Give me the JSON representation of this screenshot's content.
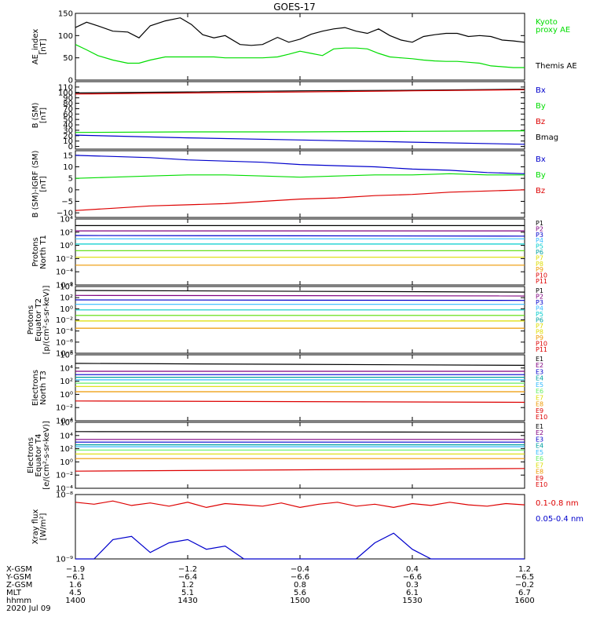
{
  "title": "GOES-17",
  "colors": {
    "black": "#000000",
    "green": "#00dd00",
    "blue": "#0000cc",
    "red": "#dd0000",
    "cyan": "#00cccc",
    "yellow": "#dddd00",
    "orange": "#ee9900",
    "purple": "#800080",
    "magenta": "#cc00cc",
    "teal": "#00a0a0",
    "lime": "#55dd00",
    "ltgreen": "#66ee66",
    "ltblue": "#33bbff"
  },
  "chart_data": [
    {
      "id": "ae",
      "type": "line",
      "ylabel": [
        "AE_index",
        "[nT]"
      ],
      "ylim": [
        0,
        150
      ],
      "yticks": [
        0,
        50,
        100,
        150
      ],
      "ytick_labels": [
        "0",
        "50",
        "100",
        "150"
      ],
      "x": [
        1400,
        1403,
        1406,
        1410,
        1414,
        1417,
        1420,
        1424,
        1428,
        1431,
        1434,
        1437,
        1440,
        1444,
        1447,
        1450,
        1454,
        1457,
        1500,
        1503,
        1506,
        1509,
        1512,
        1515,
        1518,
        1521,
        1524,
        1527,
        1530,
        1533,
        1536,
        1539,
        1542,
        1545,
        1548,
        1551,
        1554,
        1557,
        1600
      ],
      "series": [
        {
          "name": "Themis AE",
          "color": "#000000",
          "values": [
            118,
            130,
            122,
            110,
            108,
            95,
            122,
            133,
            140,
            125,
            102,
            95,
            100,
            80,
            78,
            80,
            96,
            85,
            92,
            103,
            110,
            115,
            118,
            110,
            105,
            115,
            100,
            90,
            85,
            98,
            102,
            105,
            105,
            98,
            100,
            98,
            90,
            88,
            85
          ]
        },
        {
          "name": "Kyoto proxy AE",
          "color": "#00dd00",
          "values": [
            80,
            68,
            55,
            45,
            38,
            38,
            45,
            52,
            52,
            52,
            52,
            52,
            50,
            50,
            50,
            50,
            52,
            58,
            65,
            60,
            55,
            70,
            72,
            72,
            70,
            60,
            52,
            50,
            48,
            45,
            43,
            42,
            42,
            40,
            38,
            32,
            30,
            28,
            28
          ]
        }
      ],
      "legend": [
        {
          "text": "Kyoto",
          "color": "#00dd00"
        },
        {
          "text": "proxy AE",
          "color": "#00dd00"
        },
        {
          "text": "Themis AE",
          "color": "#000000"
        }
      ]
    },
    {
      "id": "bsm",
      "type": "line",
      "ylabel": [
        "B (SM)",
        "[nT]"
      ],
      "ylim": [
        -5,
        120
      ],
      "yticks": [
        0,
        10,
        20,
        30,
        40,
        50,
        60,
        70,
        80,
        90,
        100,
        110
      ],
      "ytick_labels": [
        "0",
        "10",
        "20",
        "30",
        "40",
        "50",
        "60",
        "70",
        "80",
        "90",
        "100",
        "110"
      ],
      "x": [
        1400,
        1430,
        1500,
        1530,
        1600
      ],
      "series": [
        {
          "name": "Bmag",
          "color": "#000000",
          "values": [
            99,
            101,
            103,
            104,
            106
          ]
        },
        {
          "name": "Bz",
          "color": "#dd0000",
          "values": [
            97,
            99,
            101,
            103,
            105
          ]
        },
        {
          "name": "By",
          "color": "#00dd00",
          "values": [
            26,
            27,
            27,
            28,
            29
          ]
        },
        {
          "name": "Bx",
          "color": "#0000cc",
          "values": [
            21,
            16,
            12,
            8,
            4
          ]
        }
      ],
      "legend": [
        {
          "text": "Bx",
          "color": "#0000cc"
        },
        {
          "text": "By",
          "color": "#00dd00"
        },
        {
          "text": "Bz",
          "color": "#dd0000"
        },
        {
          "text": "Bmag",
          "color": "#000000"
        }
      ]
    },
    {
      "id": "bigrf",
      "type": "line",
      "ylabel": [
        "B (SM)-IGRF (SM)",
        "[nT]"
      ],
      "ylim": [
        -12,
        17
      ],
      "yticks": [
        -10,
        -5,
        0,
        5,
        10,
        15
      ],
      "ytick_labels": [
        "−10",
        "−5",
        "0",
        "5",
        "10",
        "15"
      ],
      "x": [
        1400,
        1410,
        1420,
        1430,
        1440,
        1450,
        1500,
        1510,
        1520,
        1530,
        1540,
        1550,
        1600
      ],
      "series": [
        {
          "name": "Bx",
          "color": "#0000cc",
          "values": [
            15,
            14.5,
            14,
            13,
            12.5,
            12,
            11,
            10.5,
            10,
            9,
            8.5,
            7.5,
            7
          ]
        },
        {
          "name": "By",
          "color": "#00dd00",
          "values": [
            5,
            5.5,
            6,
            6.5,
            6.5,
            6,
            5.5,
            6,
            6.5,
            6.5,
            7,
            6.5,
            6.5
          ]
        },
        {
          "name": "Bz",
          "color": "#dd0000",
          "values": [
            -9,
            -8,
            -7,
            -6.5,
            -6,
            -5,
            -4,
            -3.5,
            -2.5,
            -2,
            -1,
            -0.5,
            0
          ]
        }
      ],
      "legend": [
        {
          "text": "Bx",
          "color": "#0000cc"
        },
        {
          "text": "By",
          "color": "#00dd00"
        },
        {
          "text": "Bz",
          "color": "#dd0000"
        }
      ]
    },
    {
      "id": "pnorth",
      "type": "line",
      "log": true,
      "ylabel": [
        "Protons",
        "North T1"
      ],
      "ylim": [
        -6,
        4
      ],
      "yticks": [
        4,
        2,
        0,
        -2,
        -4,
        -6
      ],
      "ytick_labels": [
        "10⁴",
        "10²",
        "10⁰",
        "10⁻²",
        "10⁻⁴",
        "10⁻⁶"
      ],
      "x": [
        1400,
        1600
      ],
      "series": [
        {
          "name": "P1",
          "color": "#000000",
          "values": [
            3.0,
            3.0
          ]
        },
        {
          "name": "P2",
          "color": "#800080",
          "values": [
            2.2,
            2.2
          ]
        },
        {
          "name": "P3",
          "color": "#0000cc",
          "values": [
            1.5,
            1.4
          ]
        },
        {
          "name": "P4",
          "color": "#33bbff",
          "values": [
            1.0,
            1.0
          ]
        },
        {
          "name": "P5",
          "color": "#00cccc",
          "values": [
            0.2,
            0.2
          ]
        },
        {
          "name": "P6",
          "color": "#55dd00",
          "values": [
            -0.8,
            -0.8
          ]
        },
        {
          "name": "P7",
          "color": "#dddd00",
          "values": [
            -1.8,
            -1.8
          ]
        },
        {
          "name": "P8",
          "color": "#ee9900",
          "values": [
            -3.0,
            -3.0
          ]
        }
      ],
      "legend": [
        {
          "text": "P1",
          "color": "#000000"
        },
        {
          "text": "P2",
          "color": "#800080"
        },
        {
          "text": "P3",
          "color": "#0000cc"
        },
        {
          "text": "P4",
          "color": "#33bbff"
        },
        {
          "text": "P5",
          "color": "#00cccc"
        },
        {
          "text": "P6",
          "color": "#00a0a0"
        },
        {
          "text": "P7",
          "color": "#dddd00"
        },
        {
          "text": "P8",
          "color": "#dddd00"
        },
        {
          "text": "P9",
          "color": "#ee9900"
        },
        {
          "text": "P10",
          "color": "#dd0000"
        },
        {
          "text": "P11",
          "color": "#dd0000"
        }
      ]
    },
    {
      "id": "peq",
      "type": "line",
      "log": true,
      "ylabel": [
        "Protons",
        "Equator T2",
        "[p/(cm²-s-sr-keV)]"
      ],
      "ylim": [
        -8,
        4
      ],
      "yticks": [
        4,
        2,
        0,
        -2,
        -4,
        -6,
        -8
      ],
      "ytick_labels": [
        "10⁴",
        "10²",
        "10⁰",
        "10⁻²",
        "10⁻⁴",
        "10⁻⁶",
        "10⁻⁸"
      ],
      "x": [
        1400,
        1600
      ],
      "series": [
        {
          "name": "P1",
          "color": "#000000",
          "values": [
            3.3,
            3.0
          ]
        },
        {
          "name": "P2",
          "color": "#800080",
          "values": [
            2.4,
            2.3
          ]
        },
        {
          "name": "P3",
          "color": "#0000cc",
          "values": [
            1.6,
            1.5
          ]
        },
        {
          "name": "P4",
          "color": "#33bbff",
          "values": [
            0.8,
            0.8
          ]
        },
        {
          "name": "P5",
          "color": "#00cccc",
          "values": [
            -0.2,
            -0.2
          ]
        },
        {
          "name": "P6",
          "color": "#55dd00",
          "values": [
            -1.2,
            -1.2
          ]
        },
        {
          "name": "P7",
          "color": "#dddd00",
          "values": [
            -2.2,
            -2.2
          ]
        },
        {
          "name": "P8",
          "color": "#ee9900",
          "values": [
            -3.5,
            -3.5
          ]
        }
      ],
      "legend": [
        {
          "text": "P1",
          "color": "#000000"
        },
        {
          "text": "P2",
          "color": "#800080"
        },
        {
          "text": "P3",
          "color": "#0000cc"
        },
        {
          "text": "P4",
          "color": "#33bbff"
        },
        {
          "text": "P5",
          "color": "#00cccc"
        },
        {
          "text": "P6",
          "color": "#00a0a0"
        },
        {
          "text": "P7",
          "color": "#dddd00"
        },
        {
          "text": "P8",
          "color": "#dddd00"
        },
        {
          "text": "P9",
          "color": "#ee9900"
        },
        {
          "text": "P10",
          "color": "#dd0000"
        },
        {
          "text": "P11",
          "color": "#dd0000"
        }
      ]
    },
    {
      "id": "enorth",
      "type": "line",
      "log": true,
      "ylabel": [
        "Electrons",
        "North T3"
      ],
      "ylim": [
        -4,
        6
      ],
      "yticks": [
        6,
        4,
        2,
        0,
        -2,
        -4
      ],
      "ytick_labels": [
        "10⁶",
        "10⁴",
        "10²",
        "10⁰",
        "10⁻²",
        "10⁻⁴"
      ],
      "x": [
        1400,
        1600
      ],
      "series": [
        {
          "name": "E1",
          "color": "#000000",
          "values": [
            4.7,
            4.4
          ]
        },
        {
          "name": "E2",
          "color": "#800080",
          "values": [
            3.5,
            3.5
          ]
        },
        {
          "name": "E3",
          "color": "#0000cc",
          "values": [
            3.0,
            3.0
          ]
        },
        {
          "name": "E4",
          "color": "#00a0a0",
          "values": [
            2.6,
            2.6
          ]
        },
        {
          "name": "E5",
          "color": "#33bbff",
          "values": [
            2.2,
            2.2
          ]
        },
        {
          "name": "E6",
          "color": "#66ee66",
          "values": [
            1.7,
            1.7
          ]
        },
        {
          "name": "E7",
          "color": "#dddd00",
          "values": [
            1.2,
            1.2
          ]
        },
        {
          "name": "E8",
          "color": "#ee9900",
          "values": [
            0.4,
            0.4
          ]
        },
        {
          "name": "E9",
          "color": "#dd0000",
          "values": [
            -1.0,
            -1.2
          ]
        }
      ],
      "legend": [
        {
          "text": "E1",
          "color": "#000000"
        },
        {
          "text": "E2",
          "color": "#800080"
        },
        {
          "text": "E3",
          "color": "#0000cc"
        },
        {
          "text": "E4",
          "color": "#00a0a0"
        },
        {
          "text": "E5",
          "color": "#33bbff"
        },
        {
          "text": "E6",
          "color": "#66ee66"
        },
        {
          "text": "E7",
          "color": "#dddd00"
        },
        {
          "text": "E8",
          "color": "#ee9900"
        },
        {
          "text": "E9",
          "color": "#dd0000"
        },
        {
          "text": "E10",
          "color": "#dd0000"
        }
      ]
    },
    {
      "id": "eeq",
      "type": "line",
      "log": true,
      "ylabel": [
        "Electrons",
        "Equator T4",
        "[e/(cm²-s-sr-keV)]"
      ],
      "ylim": [
        -4,
        6
      ],
      "yticks": [
        6,
        4,
        2,
        0,
        -2,
        -4
      ],
      "ytick_labels": [
        "10⁶",
        "10⁴",
        "10²",
        "10⁰",
        "10⁻²",
        "10⁻⁴"
      ],
      "x": [
        1400,
        1600
      ],
      "series": [
        {
          "name": "E1",
          "color": "#000000",
          "values": [
            4.6,
            4.5
          ]
        },
        {
          "name": "E2",
          "color": "#800080",
          "values": [
            3.4,
            3.4
          ]
        },
        {
          "name": "E3",
          "color": "#0000cc",
          "values": [
            3.0,
            3.0
          ]
        },
        {
          "name": "E4",
          "color": "#00a0a0",
          "values": [
            2.6,
            2.6
          ]
        },
        {
          "name": "E5",
          "color": "#33bbff",
          "values": [
            2.3,
            2.3
          ]
        },
        {
          "name": "E6",
          "color": "#66ee66",
          "values": [
            1.8,
            1.8
          ]
        },
        {
          "name": "E7",
          "color": "#dddd00",
          "values": [
            1.2,
            1.2
          ]
        },
        {
          "name": "E8",
          "color": "#ee9900",
          "values": [
            0.5,
            0.5
          ]
        },
        {
          "name": "E9",
          "color": "#dd0000",
          "values": [
            -1.4,
            -1.0
          ]
        }
      ],
      "legend": [
        {
          "text": "E1",
          "color": "#000000"
        },
        {
          "text": "E2",
          "color": "#800080"
        },
        {
          "text": "E3",
          "color": "#0000cc"
        },
        {
          "text": "E4",
          "color": "#00a0a0"
        },
        {
          "text": "E5",
          "color": "#33bbff"
        },
        {
          "text": "E6",
          "color": "#66ee66"
        },
        {
          "text": "E7",
          "color": "#dddd00"
        },
        {
          "text": "E8",
          "color": "#ee9900"
        },
        {
          "text": "E9",
          "color": "#dd0000"
        },
        {
          "text": "E10",
          "color": "#dd0000"
        }
      ]
    },
    {
      "id": "xray",
      "type": "line",
      "ylabel": [
        "Xray flux",
        "[W/m²]"
      ],
      "ylim": [
        0,
        1
      ],
      "yticks": [
        1,
        0
      ],
      "ytick_labels": [
        "10⁻⁸",
        "10⁻⁹"
      ],
      "x": [
        1400,
        1405,
        1410,
        1415,
        1420,
        1425,
        1430,
        1435,
        1440,
        1445,
        1450,
        1455,
        1500,
        1505,
        1510,
        1515,
        1520,
        1525,
        1530,
        1535,
        1540,
        1545,
        1550,
        1555,
        1600
      ],
      "series": [
        {
          "name": "0.1-0.8 nm",
          "color": "#dd0000",
          "values": [
            0.88,
            0.85,
            0.9,
            0.83,
            0.87,
            0.82,
            0.88,
            0.8,
            0.86,
            0.84,
            0.82,
            0.87,
            0.8,
            0.85,
            0.88,
            0.82,
            0.85,
            0.8,
            0.86,
            0.83,
            0.88,
            0.84,
            0.82,
            0.86,
            0.84
          ]
        },
        {
          "name": "0.05-0.4 nm",
          "color": "#0000cc",
          "values": [
            0.0,
            0.0,
            0.3,
            0.35,
            0.1,
            0.25,
            0.3,
            0.15,
            0.2,
            0.0,
            0.0,
            0.0,
            0.0,
            0.0,
            0.0,
            0.0,
            0.25,
            0.4,
            0.15,
            0.0,
            0.0,
            0.0,
            0.0,
            0.0,
            0.0
          ]
        }
      ],
      "legend": [
        {
          "text": "0.1-0.8 nm",
          "color": "#dd0000"
        },
        {
          "text": "0.05-0.4 nm",
          "color": "#0000cc"
        }
      ]
    }
  ],
  "x_axis": {
    "ticks": [
      1400,
      1430,
      1500,
      1530,
      1600
    ],
    "rows": [
      {
        "label": "X-GSM",
        "values": [
          "−1.9",
          "−1.2",
          "−0.4",
          "0.4",
          "1.2"
        ]
      },
      {
        "label": "Y-GSM",
        "values": [
          "−6.1",
          "−6.4",
          "−6.6",
          "−6.6",
          "−6.5"
        ]
      },
      {
        "label": "Z-GSM",
        "values": [
          "1.6",
          "1.2",
          "0.8",
          "0.3",
          "−0.2"
        ]
      },
      {
        "label": "MLT",
        "values": [
          "4.5",
          "5.1",
          "5.6",
          "6.1",
          "6.7"
        ]
      },
      {
        "label": "hhmm",
        "values": [
          "1400",
          "1430",
          "1500",
          "1530",
          "1600"
        ]
      }
    ],
    "date": "2020 Jul 09"
  }
}
